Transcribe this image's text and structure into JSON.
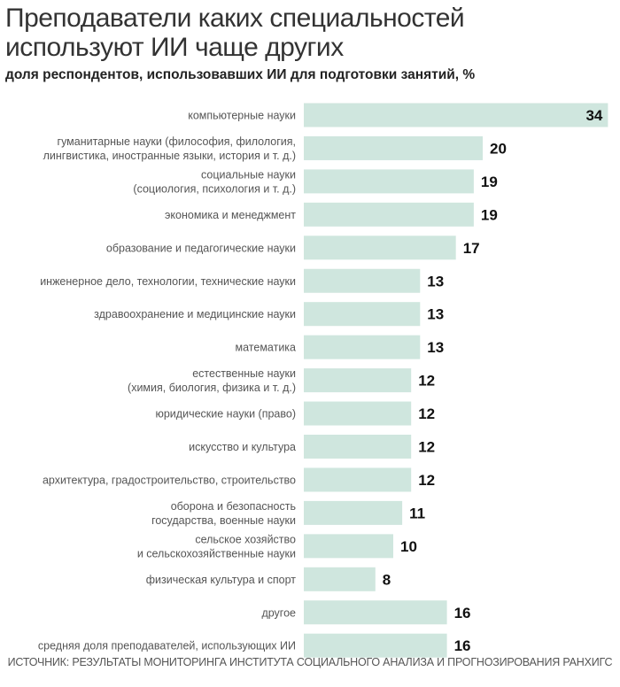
{
  "chart_data": {
    "type": "bar",
    "orientation": "horizontal",
    "title": "Преподаватели каких специальностей используют ИИ чаще других",
    "subtitle": "доля респондентов, использовавших ИИ для подготовки занятий, %",
    "source": "ИСТОЧНИК: РЕЗУЛЬТАТЫ МОНИТОРИНГА ИНСТИТУТА СОЦИАЛЬНОГО АНАЛИЗА И ПРОГНОЗИРОВАНИЯ РАНХИГС",
    "bar_color": "#cfe6de",
    "categories": [
      [
        "компьютерные науки"
      ],
      [
        "гуманитарные науки (философия, филология,",
        "лингвистика, иностранные языки, история и т. д.)"
      ],
      [
        "социальные науки",
        "(социология, психология и т. д.)"
      ],
      [
        "экономика и менеджмент"
      ],
      [
        "образование и педагогические науки"
      ],
      [
        "инженерное дело, технологии, технические науки"
      ],
      [
        "здравоохранение и медицинские науки"
      ],
      [
        "математика"
      ],
      [
        "естественные науки",
        "(химия, биология, физика и т. д.)"
      ],
      [
        "юридические науки (право)"
      ],
      [
        "искусство и культура"
      ],
      [
        "архитектура, градостроительство, строительство"
      ],
      [
        "оборона и безопасность",
        "государства, военные науки"
      ],
      [
        "сельское хозяйство",
        "и сельскохозяйственные науки"
      ],
      [
        "физическая культура и спорт"
      ],
      [
        "другое"
      ],
      [
        "средняя доля преподавателей, использующих ИИ"
      ]
    ],
    "values": [
      34,
      20,
      19,
      19,
      17,
      13,
      13,
      13,
      12,
      12,
      12,
      12,
      11,
      10,
      8,
      16,
      16
    ]
  }
}
